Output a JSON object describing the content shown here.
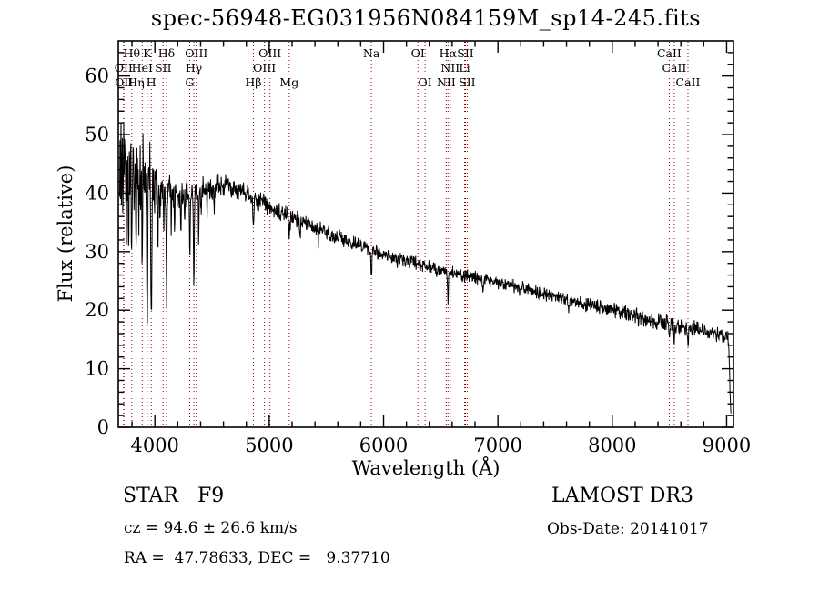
{
  "chart_data": {
    "type": "line",
    "title": "spec-56948-EG031956N084159M_sp14-245.fits",
    "xlabel": "Wavelength (Å)",
    "ylabel": "Flux (relative)",
    "xlim": [
      3680,
      9060
    ],
    "ylim": [
      0,
      66
    ],
    "xticks": [
      4000,
      5000,
      6000,
      7000,
      8000,
      9000
    ],
    "yticks": [
      0,
      10,
      20,
      30,
      40,
      50,
      60
    ],
    "grid": false,
    "line_color": "#000000",
    "marker_color": "#990000",
    "continuum": [
      [
        3690,
        43
      ],
      [
        3710,
        46
      ],
      [
        3740,
        47
      ],
      [
        3780,
        46.5
      ],
      [
        3830,
        45.5
      ],
      [
        3880,
        44.5
      ],
      [
        3930,
        43
      ],
      [
        3970,
        42
      ],
      [
        4000,
        40.8
      ],
      [
        4100,
        40.2
      ],
      [
        4200,
        40
      ],
      [
        4300,
        40
      ],
      [
        4400,
        40.5
      ],
      [
        4500,
        41
      ],
      [
        4600,
        41.5
      ],
      [
        4700,
        41
      ],
      [
        4800,
        40
      ],
      [
        4900,
        38.8
      ],
      [
        5000,
        37.5
      ],
      [
        5100,
        36.6
      ],
      [
        5200,
        35.8
      ],
      [
        5300,
        35
      ],
      [
        5400,
        34.2
      ],
      [
        5500,
        33.4
      ],
      [
        5600,
        32.6
      ],
      [
        5700,
        31.8
      ],
      [
        5800,
        31
      ],
      [
        5900,
        30.2
      ],
      [
        6000,
        29.6
      ],
      [
        6100,
        29
      ],
      [
        6200,
        28.4
      ],
      [
        6300,
        27.8
      ],
      [
        6400,
        27.3
      ],
      [
        6500,
        26.8
      ],
      [
        6600,
        26.3
      ],
      [
        6700,
        25.9
      ],
      [
        6800,
        25.5
      ],
      [
        6900,
        25.1
      ],
      [
        7000,
        24.8
      ],
      [
        7100,
        24.3
      ],
      [
        7200,
        23.8
      ],
      [
        7300,
        23.3
      ],
      [
        7400,
        22.8
      ],
      [
        7500,
        22.3
      ],
      [
        7600,
        21.8
      ],
      [
        7700,
        21.3
      ],
      [
        7800,
        20.9
      ],
      [
        7900,
        20.5
      ],
      [
        8000,
        20.1
      ],
      [
        8100,
        19.6
      ],
      [
        8200,
        19.1
      ],
      [
        8300,
        18.6
      ],
      [
        8400,
        18.1
      ],
      [
        8500,
        17.7
      ],
      [
        8600,
        17.3
      ],
      [
        8700,
        16.9
      ],
      [
        8800,
        16.4
      ],
      [
        8900,
        15.9
      ],
      [
        8990,
        15.4
      ],
      [
        9015,
        14.8
      ],
      [
        9026,
        10
      ],
      [
        9034,
        3.5
      ],
      [
        9038,
        2.5
      ]
    ],
    "noise_profile": [
      [
        3690,
        7
      ],
      [
        3900,
        6.5
      ],
      [
        3990,
        4
      ],
      [
        4050,
        2.8
      ],
      [
        4200,
        2.2
      ],
      [
        4400,
        1.8
      ],
      [
        4700,
        1.4
      ],
      [
        5000,
        1.2
      ],
      [
        5500,
        1.0
      ],
      [
        6000,
        0.9
      ],
      [
        6500,
        0.85
      ],
      [
        7000,
        0.8
      ],
      [
        7500,
        0.85
      ],
      [
        8000,
        1.0
      ],
      [
        8500,
        1.1
      ],
      [
        9000,
        1.1
      ],
      [
        9038,
        0.8
      ]
    ],
    "absorption_lines": [
      [
        3727,
        5,
        5
      ],
      [
        3750,
        13,
        4
      ],
      [
        3771,
        15,
        4
      ],
      [
        3798,
        16,
        5
      ],
      [
        3820,
        8,
        4
      ],
      [
        3835,
        17,
        5
      ],
      [
        3860,
        7,
        4
      ],
      [
        3889,
        17,
        5
      ],
      [
        3910,
        6,
        4
      ],
      [
        3933,
        28,
        6
      ],
      [
        3968,
        24,
        6
      ],
      [
        4026,
        9,
        4
      ],
      [
        4045,
        6,
        4
      ],
      [
        4077,
        7,
        4
      ],
      [
        4102,
        19,
        5
      ],
      [
        4144,
        7,
        4
      ],
      [
        4172,
        5,
        4
      ],
      [
        4227,
        9,
        4
      ],
      [
        4260,
        5,
        4
      ],
      [
        4305,
        11,
        5
      ],
      [
        4341,
        17,
        5
      ],
      [
        4383,
        8,
        4
      ],
      [
        4405,
        5,
        4
      ],
      [
        4457,
        4,
        4
      ],
      [
        4520,
        3.5,
        4
      ],
      [
        4668,
        3,
        4
      ],
      [
        4861,
        6.5,
        6
      ],
      [
        5175,
        3,
        7
      ],
      [
        5270,
        2.5,
        5
      ],
      [
        5430,
        2,
        4
      ],
      [
        5893,
        4,
        6
      ],
      [
        6122,
        1.5,
        4
      ],
      [
        6563,
        4.5,
        6
      ],
      [
        6870,
        2,
        6
      ],
      [
        7190,
        1.5,
        5
      ],
      [
        7620,
        1.8,
        7
      ],
      [
        8230,
        1.5,
        5
      ],
      [
        8498,
        2.5,
        5
      ],
      [
        8542,
        3.5,
        5
      ],
      [
        8662,
        3,
        5
      ]
    ],
    "line_markers": [
      [
        3726,
        "OII",
        2
      ],
      [
        3729,
        "OII",
        3
      ],
      [
        3798,
        "Hθ",
        1
      ],
      [
        3835,
        "Hη",
        3
      ],
      [
        3889,
        "HeI",
        2
      ],
      [
        3933,
        "K",
        1
      ],
      [
        3968,
        "H",
        3
      ],
      [
        4072,
        "SII",
        2
      ],
      [
        4102,
        "Hδ",
        1
      ],
      [
        4305,
        "G",
        3
      ],
      [
        4341,
        "Hγ",
        2
      ],
      [
        4363,
        "OIII",
        1
      ],
      [
        4861,
        "Hβ",
        3
      ],
      [
        4959,
        "OIII",
        2
      ],
      [
        5007,
        "OIII",
        1
      ],
      [
        5175,
        "Mg",
        3
      ],
      [
        5893,
        "Na",
        1
      ],
      [
        6300,
        "OI",
        1
      ],
      [
        6363,
        "OI",
        3
      ],
      [
        6548,
        "NII",
        3
      ],
      [
        6563,
        "Hα",
        1
      ],
      [
        6583,
        "NII",
        2
      ],
      [
        6708,
        "Li",
        2
      ],
      [
        6716,
        "SII",
        1
      ],
      [
        6731,
        "SII",
        3
      ],
      [
        8498,
        "CaII",
        1
      ],
      [
        8542,
        "CaII",
        2
      ],
      [
        8662,
        "CaII",
        3
      ]
    ]
  },
  "footer": {
    "class_label": "STAR   F9",
    "survey": "LAMOST DR3",
    "cz": "cz = 94.6 ± 26.6 km/s",
    "obs_date": "Obs-Date: 20141017",
    "coords": "RA =  47.78633, DEC =   9.37710"
  }
}
